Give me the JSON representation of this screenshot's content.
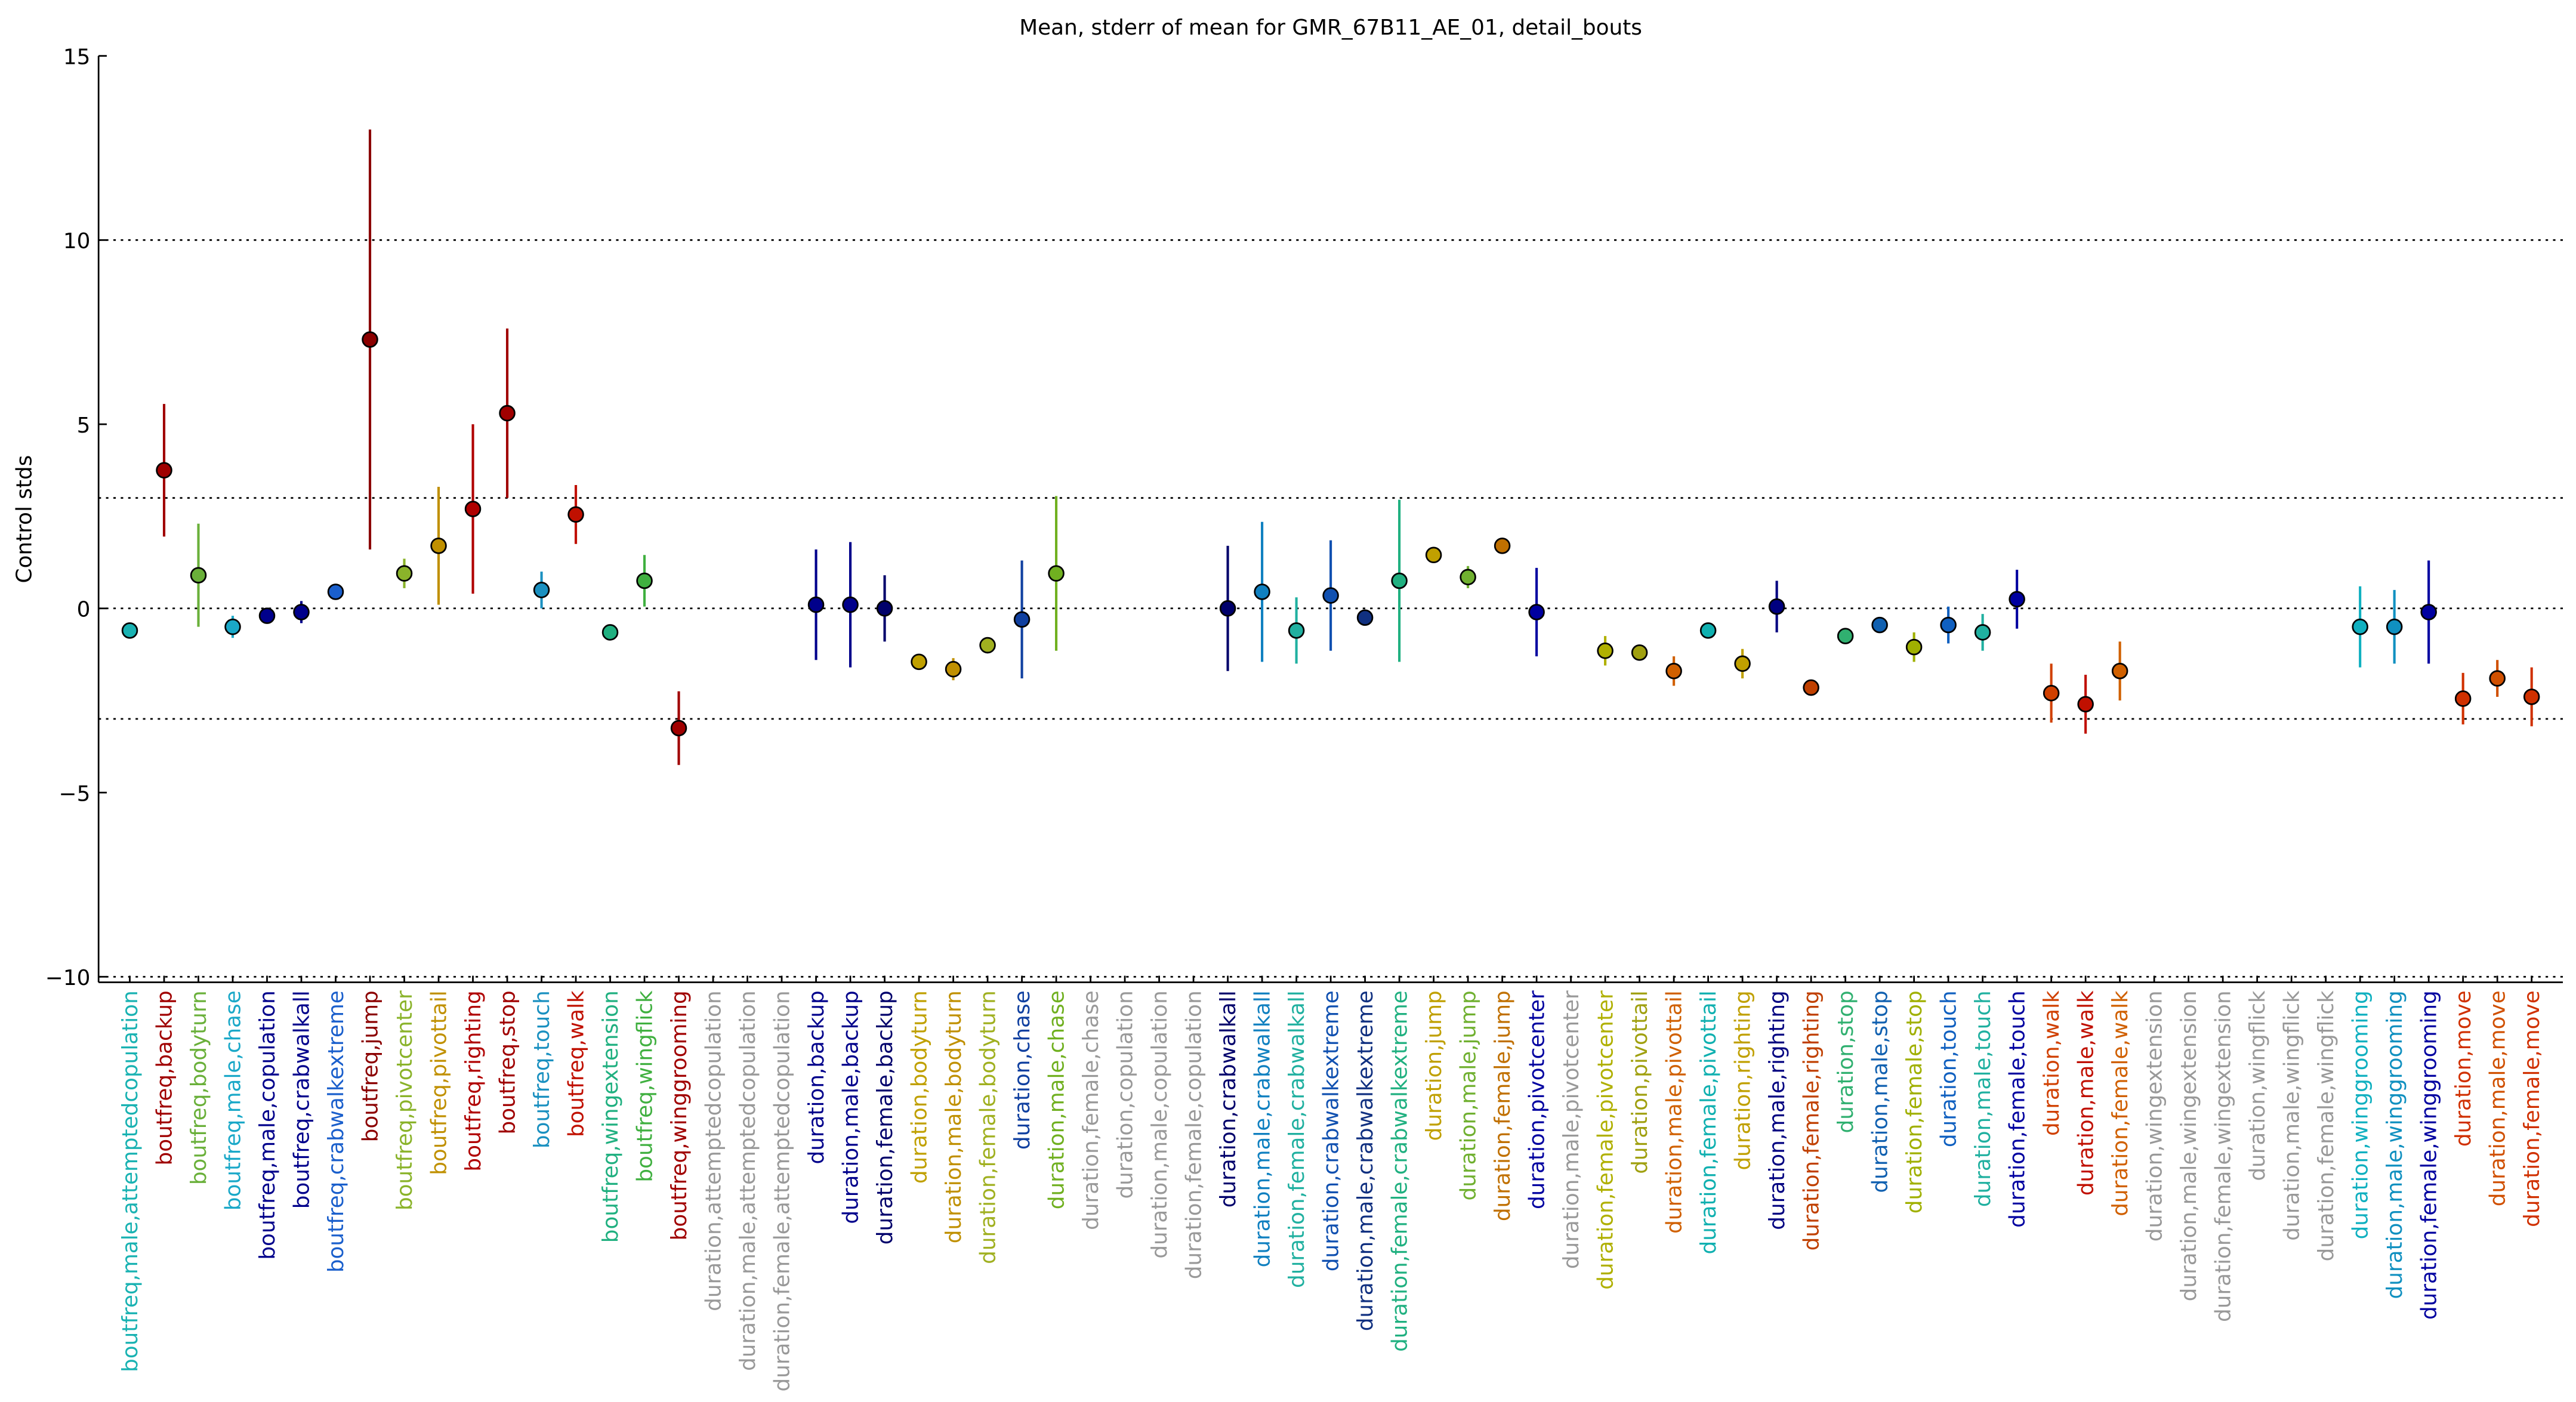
{
  "chart_data": {
    "type": "errorbar",
    "title": "Mean, stderr of mean for GMR_67B11_AE_01, detail_bouts",
    "ylabel": "Control stds",
    "ylim": [
      -10.15,
      15
    ],
    "yticks": [
      {
        "value": -10,
        "label": "−10"
      },
      {
        "value": -5,
        "label": "−5"
      },
      0,
      5,
      10,
      15
    ],
    "hlines": [
      10,
      3,
      0,
      -3,
      -10
    ],
    "categories": [
      "boutfreq,male,attemptedcopulation",
      "boutfreq,backup",
      "boutfreq,bodyturn",
      "boutfreq,male,chase",
      "boutfreq,male,copulation",
      "boutfreq,crabwalkall",
      "boutfreq,crabwalkextreme",
      "boutfreq,jump",
      "boutfreq,pivotcenter",
      "boutfreq,pivottail",
      "boutfreq,righting",
      "boutfreq,stop",
      "boutfreq,touch",
      "boutfreq,walk",
      "boutfreq,wingextension",
      "boutfreq,wingflick",
      "boutfreq,winggrooming",
      "duration,attemptedcopulation",
      "duration,male,attemptedcopulation",
      "duration,female,attemptedcopulation",
      "duration,backup",
      "duration,male,backup",
      "duration,female,backup",
      "duration,bodyturn",
      "duration,male,bodyturn",
      "duration,female,bodyturn",
      "duration,chase",
      "duration,male,chase",
      "duration,female,chase",
      "duration,copulation",
      "duration,male,copulation",
      "duration,female,copulation",
      "duration,crabwalkall",
      "duration,male,crabwalkall",
      "duration,female,crabwalkall",
      "duration,crabwalkextreme",
      "duration,male,crabwalkextreme",
      "duration,female,crabwalkextreme",
      "duration,jump",
      "duration,male,jump",
      "duration,female,jump",
      "duration,pivotcenter",
      "duration,male,pivotcenter",
      "duration,female,pivotcenter",
      "duration,pivottail",
      "duration,male,pivottail",
      "duration,female,pivottail",
      "duration,righting",
      "duration,male,righting",
      "duration,female,righting",
      "duration,stop",
      "duration,male,stop",
      "duration,female,stop",
      "duration,touch",
      "duration,male,touch",
      "duration,female,touch",
      "duration,walk",
      "duration,male,walk",
      "duration,female,walk",
      "duration,wingextension",
      "duration,male,wingextension",
      "duration,female,wingextension",
      "duration,wingflick",
      "duration,male,wingflick",
      "duration,female,wingflick",
      "duration,winggrooming",
      "duration,male,winggrooming",
      "duration,female,winggrooming",
      "duration,move",
      "duration,male,move",
      "duration,female,move"
    ],
    "values": [
      -0.6,
      3.75,
      0.9,
      -0.5,
      -0.2,
      -0.1,
      0.45,
      7.3,
      0.95,
      1.7,
      2.7,
      5.3,
      0.5,
      2.55,
      -0.65,
      0.75,
      -3.25,
      null,
      null,
      null,
      0.1,
      0.1,
      0.0,
      -1.45,
      -1.65,
      -1.0,
      -0.3,
      0.95,
      null,
      null,
      null,
      null,
      0.0,
      0.45,
      -0.6,
      0.35,
      -0.25,
      0.75,
      1.45,
      0.85,
      1.7,
      -0.1,
      null,
      -1.15,
      -1.2,
      -1.7,
      -0.6,
      -1.5,
      0.05,
      -2.15,
      -0.75,
      -0.45,
      -1.05,
      -0.45,
      -0.65,
      0.25,
      -2.3,
      -2.6,
      -1.7,
      null,
      null,
      null,
      null,
      null,
      null,
      -0.5,
      -0.5,
      -0.1,
      -2.45,
      -1.9,
      -2.4
    ],
    "errors": [
      0.1,
      1.8,
      1.4,
      0.3,
      0.1,
      0.3,
      0.1,
      5.7,
      0.4,
      1.6,
      2.3,
      2.3,
      0.5,
      0.8,
      0.1,
      0.7,
      1.0,
      null,
      null,
      null,
      1.5,
      1.7,
      0.9,
      0.2,
      0.3,
      0.15,
      1.6,
      2.1,
      null,
      null,
      null,
      null,
      1.7,
      1.9,
      0.9,
      1.5,
      0.1,
      2.2,
      0.1,
      0.3,
      0.1,
      1.2,
      null,
      0.4,
      0.15,
      0.4,
      0.1,
      0.4,
      0.7,
      0.1,
      0.1,
      0.1,
      0.4,
      0.5,
      0.5,
      0.8,
      0.8,
      0.8,
      0.8,
      null,
      null,
      null,
      null,
      null,
      null,
      1.1,
      1.0,
      1.4,
      0.7,
      0.5,
      0.8
    ],
    "colors": [
      "#19b2b2",
      "#a00000",
      "#6ab03a",
      "#1aa8c8",
      "#00008b",
      "#00008b",
      "#1a5fcc",
      "#8b0000",
      "#8ab32a",
      "#c09000",
      "#b00000",
      "#a00000",
      "#1a90c0",
      "#c01000",
      "#20b080",
      "#40b040",
      "#a00000",
      "#999999",
      "#999999",
      "#999999",
      "#00008b",
      "#00008b",
      "#00006b",
      "#c0a000",
      "#c09000",
      "#a0b020",
      "#1040a0",
      "#70b020",
      "#999999",
      "#999999",
      "#999999",
      "#999999",
      "#00006b",
      "#1080c0",
      "#20b0a0",
      "#1050b0",
      "#103080",
      "#20b080",
      "#c0a000",
      "#70b030",
      "#c07000",
      "#0000a0",
      "#999999",
      "#b0b000",
      "#a0a010",
      "#d06000",
      "#10b0b0",
      "#c0a000",
      "#000080",
      "#c04000",
      "#30b070",
      "#1060b0",
      "#a0b000",
      "#1060c0",
      "#20b0a0",
      "#0000a0",
      "#d04000",
      "#c01000",
      "#d06000",
      "#999999",
      "#999999",
      "#999999",
      "#999999",
      "#999999",
      "#999999",
      "#10b0c0",
      "#1090c0",
      "#0000a0",
      "#d03000",
      "#d05000",
      "#d03000"
    ]
  }
}
